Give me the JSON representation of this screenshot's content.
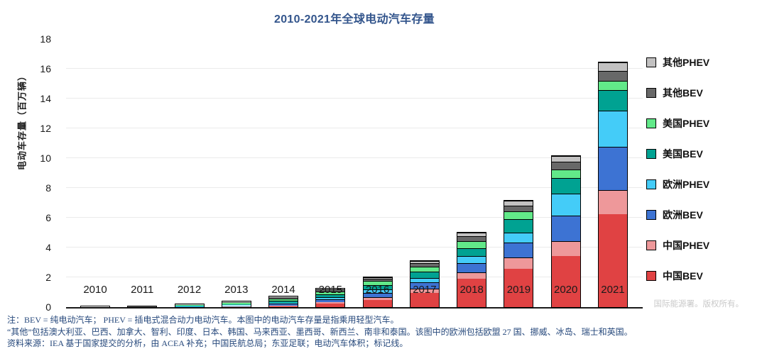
{
  "watermark": "国际能源署。版权所有。",
  "footnotes": [
    "注：BEV = 纯电动汽车； PHEV = 插电式混合动力电动汽车。本图中的电动汽车存量是指乘用轻型汽车。",
    "“其他”包括澳大利亚、巴西、加拿大、智利、印度、日本、韩国、马来西亚、墨西哥、新西兰、南非和泰国。该图中的欧洲包括欧盟 27 国、挪威、冰岛、瑞士和英国。",
    "资料来源：IEA 基于国家提交的分析，由 ACEA 补充；中国民航总局；东亚足联；电动汽车体积；标记线。"
  ],
  "chart_data": {
    "type": "bar",
    "stacked": true,
    "title": "2010-2021年全球电动汽车存量",
    "xlabel": "",
    "ylabel": "电动车存量（百万辆）",
    "ylim": [
      0,
      18
    ],
    "ytick_step": 2,
    "grid": true,
    "legend_position": "right",
    "axis_color": "#1a1a1a",
    "grid_color": "#ebebeb",
    "categories": [
      "2010",
      "2011",
      "2012",
      "2013",
      "2014",
      "2015",
      "2016",
      "2017",
      "2018",
      "2019",
      "2020",
      "2021"
    ],
    "series": [
      {
        "name": "中国BEV",
        "color": "#e04243",
        "values": [
          0.01,
          0.015,
          0.02,
          0.03,
          0.08,
          0.23,
          0.49,
          0.95,
          1.89,
          2.58,
          3.45,
          6.25
        ]
      },
      {
        "name": "中国PHEV",
        "color": "#ee989a",
        "values": [
          0.0,
          0.002,
          0.003,
          0.01,
          0.03,
          0.09,
          0.17,
          0.28,
          0.44,
          0.77,
          1.0,
          1.6
        ]
      },
      {
        "name": "欧洲BEV",
        "color": "#3d73d3",
        "values": [
          0.005,
          0.012,
          0.03,
          0.06,
          0.12,
          0.19,
          0.29,
          0.42,
          0.62,
          0.97,
          1.7,
          2.9
        ]
      },
      {
        "name": "欧洲PHEV",
        "color": "#44ccf8",
        "values": [
          0.0,
          0.002,
          0.01,
          0.02,
          0.06,
          0.15,
          0.23,
          0.31,
          0.46,
          0.69,
          1.49,
          2.45
        ]
      },
      {
        "name": "美国BEV",
        "color": "#00a292",
        "values": [
          0.002,
          0.01,
          0.03,
          0.07,
          0.14,
          0.21,
          0.3,
          0.4,
          0.55,
          0.88,
          1.05,
          1.35
        ]
      },
      {
        "name": "美国PHEV",
        "color": "#62e989",
        "values": [
          0.0,
          0.008,
          0.04,
          0.09,
          0.15,
          0.19,
          0.26,
          0.36,
          0.47,
          0.54,
          0.57,
          0.65
        ]
      },
      {
        "name": "其他BEV",
        "color": "#686868",
        "values": [
          0.004,
          0.012,
          0.04,
          0.07,
          0.09,
          0.12,
          0.17,
          0.24,
          0.31,
          0.39,
          0.51,
          0.65
        ]
      },
      {
        "name": "其他PHEV",
        "color": "#c2c1c1",
        "values": [
          0.0,
          0.002,
          0.02,
          0.03,
          0.04,
          0.06,
          0.1,
          0.15,
          0.26,
          0.3,
          0.36,
          0.6
        ]
      }
    ],
    "legend_order_top_to_bottom": [
      "其他PHEV",
      "其他BEV",
      "美国PHEV",
      "美国BEV",
      "欧洲PHEV",
      "欧洲BEV",
      "中国PHEV",
      "中国BEV"
    ]
  }
}
